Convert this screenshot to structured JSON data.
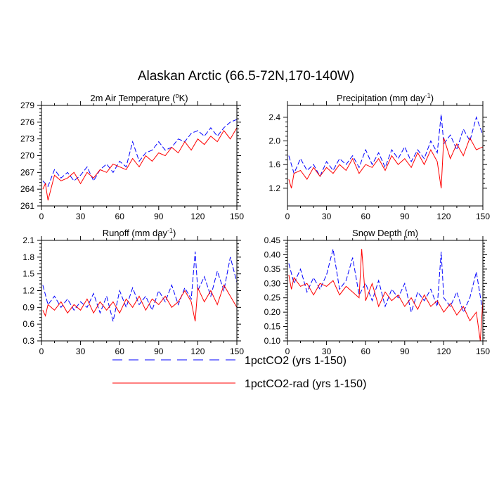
{
  "figure": {
    "title": "Alaskan Arctic (66.5-72N,170-140W)"
  },
  "legend": [
    {
      "label": "1pctCO2 (yrs 1-150)",
      "color": "#0000ff",
      "dash": "dashed"
    },
    {
      "label": "1pctCO2-rad (yrs 1-150)",
      "color": "#ff0000",
      "dash": "solid"
    }
  ],
  "chart_data": [
    {
      "type": "line",
      "title": "2m Air Temperature (°K)",
      "title_parts": [
        "2m Air Temperature (",
        "o",
        "K)"
      ],
      "xlim": [
        0,
        150
      ],
      "ylim": [
        261,
        279
      ],
      "xticks": [
        0,
        30,
        60,
        90,
        120,
        150
      ],
      "yticks": [
        261,
        264,
        267,
        270,
        273,
        276,
        279
      ],
      "yticklabels": [
        "261",
        "264",
        "267",
        "270",
        "273",
        "276",
        "279"
      ],
      "series": [
        {
          "name": "1pctCO2 (yrs 1-150)",
          "color": "#0000ff",
          "dash": "dashed",
          "x": [
            1,
            5,
            10,
            15,
            20,
            25,
            30,
            35,
            40,
            45,
            50,
            55,
            60,
            65,
            70,
            75,
            80,
            85,
            90,
            95,
            100,
            105,
            110,
            115,
            120,
            125,
            130,
            135,
            140,
            145,
            150
          ],
          "y": [
            265.5,
            264.5,
            267.5,
            266.0,
            267.0,
            265.5,
            266.5,
            268.0,
            265.5,
            267.5,
            268.5,
            267.0,
            269.0,
            268.0,
            272.5,
            269.0,
            270.5,
            271.0,
            272.5,
            271.0,
            271.5,
            273.0,
            272.5,
            274.0,
            274.5,
            273.5,
            275.0,
            273.5,
            275.0,
            276.0,
            276.5
          ]
        },
        {
          "name": "1pctCO2-rad (yrs 1-150)",
          "color": "#ff0000",
          "dash": "solid",
          "x": [
            1,
            3,
            5,
            10,
            15,
            20,
            25,
            30,
            35,
            40,
            45,
            50,
            55,
            60,
            65,
            70,
            75,
            80,
            85,
            90,
            95,
            100,
            105,
            110,
            115,
            120,
            125,
            130,
            135,
            140,
            145,
            150
          ],
          "y": [
            264.0,
            265.0,
            262.0,
            266.5,
            265.5,
            266.0,
            267.0,
            265.0,
            267.0,
            266.0,
            267.5,
            267.0,
            268.5,
            268.0,
            267.5,
            269.5,
            268.0,
            270.0,
            269.0,
            270.5,
            270.0,
            271.5,
            270.5,
            272.5,
            271.0,
            273.0,
            272.0,
            273.5,
            272.5,
            274.5,
            273.0,
            275.0
          ]
        }
      ]
    },
    {
      "type": "line",
      "title": "Precipitation (mm day-1)",
      "title_parts": [
        "Precipitation (mm day",
        "-1",
        ")"
      ],
      "xlim": [
        0,
        150
      ],
      "ylim": [
        0.9,
        2.6
      ],
      "xticks": [
        0,
        30,
        60,
        90,
        120,
        150
      ],
      "yticks": [
        1.2,
        1.6,
        2.0,
        2.4
      ],
      "yticklabels": [
        "1.2",
        "1.6",
        "2.0",
        "2.4"
      ],
      "series": [
        {
          "name": "1pctCO2 (yrs 1-150)",
          "color": "#0000ff",
          "dash": "dashed",
          "x": [
            1,
            5,
            10,
            15,
            20,
            25,
            30,
            35,
            40,
            45,
            50,
            55,
            60,
            65,
            70,
            75,
            80,
            85,
            90,
            95,
            100,
            105,
            110,
            115,
            118,
            120,
            125,
            130,
            135,
            140,
            145,
            150
          ],
          "y": [
            1.75,
            1.45,
            1.7,
            1.5,
            1.6,
            1.4,
            1.65,
            1.5,
            1.7,
            1.6,
            1.75,
            1.55,
            1.85,
            1.6,
            1.8,
            1.55,
            1.85,
            1.7,
            1.9,
            1.65,
            1.85,
            1.7,
            2.0,
            1.8,
            2.45,
            1.95,
            2.1,
            1.85,
            2.2,
            2.0,
            2.4,
            2.1
          ]
        },
        {
          "name": "1pctCO2-rad (yrs 1-150)",
          "color": "#ff0000",
          "dash": "solid",
          "x": [
            1,
            3,
            5,
            10,
            15,
            20,
            25,
            30,
            35,
            40,
            45,
            50,
            55,
            60,
            65,
            70,
            75,
            80,
            85,
            90,
            95,
            100,
            105,
            110,
            115,
            118,
            120,
            125,
            130,
            135,
            140,
            145,
            150
          ],
          "y": [
            1.35,
            1.2,
            1.45,
            1.5,
            1.35,
            1.55,
            1.4,
            1.55,
            1.45,
            1.6,
            1.5,
            1.7,
            1.45,
            1.6,
            1.55,
            1.7,
            1.5,
            1.75,
            1.6,
            1.7,
            1.55,
            1.8,
            1.6,
            1.85,
            1.65,
            1.2,
            2.05,
            1.7,
            1.95,
            1.75,
            2.05,
            1.85,
            1.9
          ]
        }
      ]
    },
    {
      "type": "line",
      "title": "Runoff (mm day-1)",
      "title_parts": [
        "Runoff (mm day",
        "-1",
        ")"
      ],
      "xlim": [
        0,
        150
      ],
      "ylim": [
        0.3,
        2.1
      ],
      "xticks": [
        0,
        30,
        60,
        90,
        120,
        150
      ],
      "yticks": [
        0.3,
        0.6,
        0.9,
        1.2,
        1.5,
        1.8,
        2.1
      ],
      "yticklabels": [
        "0.3",
        "0.6",
        "0.9",
        "1.2",
        "1.5",
        "1.8",
        "2.1"
      ],
      "series": [
        {
          "name": "1pctCO2 (yrs 1-150)",
          "color": "#0000ff",
          "dash": "dashed",
          "x": [
            1,
            5,
            10,
            15,
            20,
            25,
            30,
            35,
            40,
            45,
            50,
            55,
            60,
            65,
            70,
            75,
            80,
            85,
            90,
            95,
            100,
            105,
            110,
            115,
            118,
            120,
            125,
            130,
            135,
            140,
            145,
            150
          ],
          "y": [
            1.3,
            0.95,
            1.1,
            0.9,
            1.05,
            0.85,
            1.0,
            0.9,
            1.15,
            0.8,
            1.1,
            0.65,
            1.2,
            0.9,
            1.25,
            0.95,
            1.1,
            0.85,
            1.2,
            1.0,
            1.3,
            0.95,
            1.25,
            1.05,
            1.9,
            1.2,
            1.45,
            1.1,
            1.55,
            1.2,
            1.8,
            1.35
          ]
        },
        {
          "name": "1pctCO2-rad (yrs 1-150)",
          "color": "#ff0000",
          "dash": "solid",
          "x": [
            1,
            3,
            5,
            10,
            15,
            20,
            25,
            30,
            35,
            40,
            45,
            50,
            55,
            60,
            65,
            70,
            75,
            80,
            85,
            90,
            95,
            100,
            105,
            110,
            115,
            118,
            120,
            125,
            130,
            135,
            140,
            145,
            150
          ],
          "y": [
            0.85,
            0.75,
            0.95,
            0.85,
            1.0,
            0.8,
            0.95,
            0.85,
            1.05,
            0.8,
            1.0,
            0.85,
            1.0,
            0.8,
            1.05,
            0.9,
            1.1,
            0.85,
            1.05,
            0.95,
            1.1,
            0.9,
            1.0,
            1.2,
            1.0,
            0.65,
            1.25,
            1.0,
            1.2,
            0.95,
            1.3,
            1.1,
            0.9
          ]
        }
      ]
    },
    {
      "type": "line",
      "title": "Snow Depth (m)",
      "title_parts": [
        "Snow Depth (m)"
      ],
      "xlim": [
        0,
        150
      ],
      "ylim": [
        0.1,
        0.45
      ],
      "xticks": [
        0,
        30,
        60,
        90,
        120,
        150
      ],
      "yticks": [
        0.1,
        0.15,
        0.2,
        0.25,
        0.3,
        0.35,
        0.4,
        0.45
      ],
      "yticklabels": [
        "0.10",
        "0.15",
        "0.20",
        "0.25",
        "0.30",
        "0.35",
        "0.40",
        "0.45"
      ],
      "series": [
        {
          "name": "1pctCO2 (yrs 1-150)",
          "color": "#0000ff",
          "dash": "dashed",
          "x": [
            1,
            5,
            10,
            15,
            20,
            25,
            30,
            35,
            40,
            45,
            50,
            55,
            60,
            65,
            70,
            75,
            80,
            85,
            90,
            95,
            100,
            105,
            110,
            115,
            118,
            120,
            125,
            130,
            135,
            140,
            145,
            150
          ],
          "y": [
            0.37,
            0.3,
            0.35,
            0.27,
            0.32,
            0.28,
            0.33,
            0.42,
            0.28,
            0.31,
            0.39,
            0.26,
            0.3,
            0.24,
            0.31,
            0.22,
            0.28,
            0.25,
            0.3,
            0.2,
            0.27,
            0.24,
            0.28,
            0.22,
            0.41,
            0.25,
            0.22,
            0.27,
            0.2,
            0.25,
            0.34,
            0.2
          ]
        },
        {
          "name": "1pctCO2-rad (yrs 1-150)",
          "color": "#ff0000",
          "dash": "solid",
          "x": [
            1,
            3,
            5,
            10,
            15,
            20,
            25,
            30,
            35,
            40,
            45,
            50,
            55,
            57,
            60,
            65,
            70,
            75,
            80,
            85,
            90,
            95,
            100,
            105,
            110,
            115,
            120,
            125,
            130,
            135,
            140,
            145,
            148,
            150
          ],
          "y": [
            0.33,
            0.28,
            0.32,
            0.29,
            0.3,
            0.26,
            0.3,
            0.29,
            0.31,
            0.26,
            0.29,
            0.27,
            0.25,
            0.42,
            0.24,
            0.3,
            0.22,
            0.27,
            0.24,
            0.26,
            0.22,
            0.25,
            0.21,
            0.26,
            0.22,
            0.24,
            0.2,
            0.23,
            0.19,
            0.22,
            0.17,
            0.2,
            0.1,
            0.24
          ]
        }
      ]
    }
  ]
}
